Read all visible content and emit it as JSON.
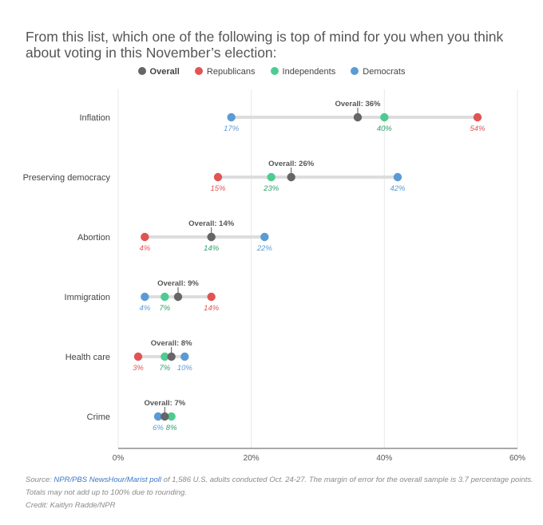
{
  "title": "From this list, which one of the following is top of mind for you when you think about voting in this November’s election:",
  "legend": [
    {
      "label": "Overall",
      "color": "#666666"
    },
    {
      "label": "Republicans",
      "color": "#e05454"
    },
    {
      "label": "Independents",
      "color": "#4fcb92"
    },
    {
      "label": "Democrats",
      "color": "#5b9bd5"
    }
  ],
  "colors": {
    "overall": "#666666",
    "republicans": "#e05454",
    "independents": "#4fcb92",
    "democrats": "#5b9bd5",
    "independents_label": "#2e9e69",
    "range_line": "#dddddd",
    "grid": "#e8e8e8"
  },
  "chart_data": {
    "type": "dot-range",
    "title": "From this list, which one of the following is top of mind for you when you think about voting in this November’s election:",
    "xlim": [
      0,
      60
    ],
    "xticks": [
      0,
      20,
      40,
      60
    ],
    "xtick_labels": [
      "0%",
      "20%",
      "40%",
      "60%"
    ],
    "categories": [
      "Inflation",
      "Preserving democracy",
      "Abortion",
      "Immigration",
      "Health care",
      "Crime"
    ],
    "series": [
      {
        "name": "Overall",
        "values": [
          36,
          26,
          14,
          9,
          8,
          7
        ]
      },
      {
        "name": "Republicans",
        "values": [
          54,
          15,
          4,
          14,
          3,
          null
        ]
      },
      {
        "name": "Independents",
        "values": [
          40,
          23,
          14,
          7,
          7,
          8
        ]
      },
      {
        "name": "Democrats",
        "values": [
          17,
          42,
          22,
          4,
          10,
          6
        ]
      }
    ],
    "overall_labels": [
      "Overall: 36%",
      "Overall: 26%",
      "Overall: 14%",
      "Overall: 9%",
      "Overall: 8%",
      "Overall: 7%"
    ],
    "grid": true,
    "legend_position": "top-center"
  },
  "footer": {
    "source_prefix": "Source: ",
    "source_link": "NPR/PBS NewsHour/Marist poll",
    "source_rest": " of 1,586 U.S. adults conducted Oct. 24-27. The margin of error for the overall sample is 3.7 percentage points.",
    "note": "Totals may not add up to 100% due to rounding.",
    "credit": "Credit: Kaitlyn Radde/NPR"
  }
}
